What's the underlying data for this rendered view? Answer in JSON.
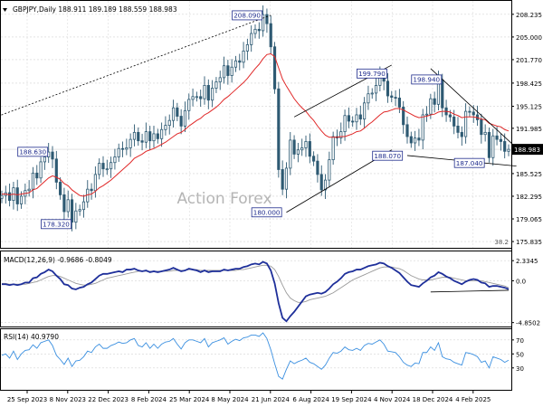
{
  "symbol_line": "GBPJPY,Daily  188.911 189.189 188.559 188.983",
  "watermark": "Action Forex",
  "colors": {
    "candle": "#2e5a73",
    "ma": "#e02828",
    "trendline": "#000000",
    "label_border": "#1e2b8c",
    "label_text": "#1e2b8c",
    "macd": "#1e2f9a",
    "signal": "#9a9a9a",
    "rsi": "#3a8fe0",
    "grid": "#d4d4d4",
    "price_box": "#000000",
    "watermark": "#b4b4b4"
  },
  "chart_data": [
    {
      "type": "candlestick",
      "title": "GBPJPY,Daily",
      "ohlc_last": {
        "open": 188.911,
        "high": 189.189,
        "low": 188.559,
        "close": 188.983
      },
      "current_price_label": "188.983",
      "y_ticks": [
        "208.235",
        "205.000",
        "201.770",
        "198.425",
        "195.125",
        "191.985",
        "188.983",
        "185.525",
        "182.295",
        "179.065",
        "175.835"
      ],
      "y_tick_values": [
        208.235,
        205.0,
        201.77,
        198.425,
        195.125,
        191.985,
        188.983,
        185.525,
        182.295,
        179.065,
        175.835
      ],
      "ylim": [
        175.2,
        209.5
      ],
      "x_ticks": [
        "25 Sep 2023",
        "8 Nov 2023",
        "22 Dec 2023",
        "8 Feb 2024",
        "25 Mar 2024",
        "8 May 2024",
        "21 Jun 2024",
        "6 Aug 2024",
        "19 Sep 2024",
        "4 Nov 2024",
        "18 Dec 2024",
        "4 Feb 2025"
      ],
      "x_tick_positions": [
        0.05,
        0.13,
        0.21,
        0.29,
        0.37,
        0.45,
        0.53,
        0.61,
        0.69,
        0.77,
        0.85,
        0.93
      ],
      "fib_label": "38.2",
      "closes": [
        182.4,
        182.8,
        181.7,
        183.5,
        181.2,
        182.3,
        183.1,
        183.3,
        185.6,
        184.9,
        187.2,
        187.9,
        188.6,
        187.6,
        184.3,
        182.5,
        180.1,
        181.8,
        178.6,
        180.2,
        180.4,
        181.5,
        183.3,
        183.1,
        185.4,
        187.0,
        186.2,
        186.2,
        187.1,
        187.9,
        189.1,
        189.0,
        189.2,
        190.4,
        191.4,
        190.2,
        190.0,
        191.5,
        190.2,
        191.2,
        190.5,
        191.8,
        192.4,
        193.1,
        194.9,
        193.7,
        192.3,
        194.5,
        196.1,
        196.5,
        196.5,
        196.2,
        198.1,
        196.0,
        197.7,
        198.6,
        199.2,
        200.9,
        199.5,
        200.7,
        201.6,
        201.4,
        203.0,
        203.9,
        205.5,
        206.1,
        205.9,
        208.2,
        206.9,
        203.6,
        197.6,
        186.1,
        183.3,
        186.3,
        190.3,
        188.3,
        188.9,
        189.2,
        190.1,
        188.0,
        187.3,
        185.4,
        183.2,
        184.6,
        187.5,
        190.8,
        190.6,
        191.5,
        193.8,
        193.0,
        192.9,
        193.9,
        193.3,
        195.6,
        196.9,
        197.0,
        198.1,
        199.5,
        198.7,
        196.6,
        196.4,
        196.3,
        195.0,
        192.5,
        190.8,
        189.9,
        190.6,
        190.3,
        193.9,
        194.0,
        196.2,
        195.4,
        198.9,
        194.9,
        193.9,
        193.6,
        192.3,
        191.4,
        190.8,
        194.4,
        194.3,
        193.9,
        193.2,
        191.1,
        191.4,
        187.8,
        190.9,
        190.4,
        190.1,
        188.7,
        188.983
      ],
      "ma_values": [
        182.6,
        182.6,
        182.5,
        182.6,
        182.5,
        182.6,
        182.7,
        182.8,
        183.2,
        183.4,
        183.9,
        184.4,
        184.9,
        185.2,
        185.0,
        184.7,
        184.1,
        183.8,
        183.2,
        182.8,
        182.4,
        182.3,
        182.5,
        182.6,
        183.0,
        183.5,
        183.8,
        184.2,
        184.6,
        185.1,
        185.6,
        186.1,
        186.6,
        187.1,
        187.7,
        188.0,
        188.3,
        188.7,
        188.9,
        189.1,
        189.4,
        189.7,
        190.0,
        190.4,
        190.8,
        191.2,
        191.4,
        191.8,
        192.3,
        192.7,
        193.1,
        193.4,
        193.9,
        194.2,
        194.6,
        195.0,
        195.5,
        196.1,
        196.5,
        197.0,
        197.5,
        198.0,
        198.5,
        199.1,
        199.8,
        200.5,
        201.1,
        201.9,
        202.5,
        202.6,
        202.2,
        200.6,
        199.0,
        198.0,
        197.1,
        196.2,
        195.5,
        194.9,
        194.4,
        193.7,
        193.1,
        192.3,
        191.6,
        191.0,
        190.7,
        190.7,
        190.7,
        190.8,
        190.8,
        191.0,
        191.2,
        191.5,
        191.6,
        192.0,
        192.5,
        192.9,
        193.4,
        193.9,
        194.3,
        194.4,
        194.6,
        194.8,
        194.8,
        194.6,
        194.3,
        194.0,
        193.7,
        193.5,
        193.6,
        193.7,
        193.9,
        194.0,
        194.3,
        194.4,
        194.4,
        194.3,
        194.0,
        193.8,
        193.5,
        193.6,
        193.6,
        193.6,
        193.5,
        193.3,
        193.2,
        192.7,
        192.5,
        192.3,
        192.2,
        191.8,
        191.6
      ],
      "annotations": [
        {
          "text": "208.090",
          "x": 67,
          "y": 208.09
        },
        {
          "text": "188.630",
          "x": 12,
          "y": 188.63
        },
        {
          "text": "178.320",
          "x": 18,
          "y": 178.32
        },
        {
          "text": "180.000",
          "x": 72,
          "y": 180.0
        },
        {
          "text": "199.790",
          "x": 99,
          "y": 199.79
        },
        {
          "text": "198.940",
          "x": 113,
          "y": 198.94
        },
        {
          "text": "188.070",
          "x": 103,
          "y": 188.07
        },
        {
          "text": "187.040",
          "x": 124,
          "y": 187.04
        }
      ],
      "trendlines": [
        {
          "style": "dashed",
          "from": [
            -1,
            193.7
          ],
          "to": [
            69,
            208.1
          ]
        },
        {
          "style": "solid",
          "from": [
            73,
            180.0
          ],
          "to": [
            100,
            188.9
          ]
        },
        {
          "style": "solid",
          "from": [
            75,
            193.6
          ],
          "to": [
            100,
            201.0
          ]
        },
        {
          "style": "solid",
          "from": [
            104,
            188.1
          ],
          "to": [
            132,
            186.6
          ]
        },
        {
          "style": "solid",
          "from": [
            110,
            200.5
          ],
          "to": [
            132,
            189.2
          ]
        }
      ]
    },
    {
      "type": "line",
      "title": "MACD(12,26,9) -0.9686 -0.8049",
      "y_ticks": [
        "2.3345",
        "0.0",
        "-4.8502"
      ],
      "y_tick_values": [
        2.3345,
        0.0,
        -4.8502
      ],
      "ylim": [
        -5.2,
        3.3
      ],
      "series": [
        {
          "name": "MACD",
          "values": [
            -0.4,
            -0.4,
            -0.5,
            -0.4,
            -0.5,
            -0.4,
            -0.2,
            -0.2,
            0.3,
            0.4,
            0.8,
            1.0,
            1.3,
            1.1,
            0.6,
            0.2,
            -0.4,
            -0.5,
            -0.9,
            -1.0,
            -0.8,
            -0.7,
            -0.4,
            -0.2,
            0.2,
            0.6,
            0.8,
            0.8,
            0.9,
            1.0,
            1.1,
            1.0,
            1.3,
            1.3,
            1.4,
            1.2,
            1.1,
            1.2,
            1.0,
            1.1,
            1.0,
            1.1,
            1.2,
            1.3,
            1.5,
            1.3,
            1.1,
            1.2,
            1.4,
            1.3,
            1.2,
            1.0,
            1.2,
            1.0,
            1.1,
            1.1,
            1.1,
            1.3,
            1.2,
            1.3,
            1.4,
            1.4,
            1.6,
            1.7,
            1.9,
            2.0,
            1.9,
            2.2,
            2.0,
            1.2,
            -0.3,
            -2.6,
            -4.3,
            -4.7,
            -4.1,
            -3.6,
            -3.0,
            -2.4,
            -1.8,
            -1.6,
            -1.5,
            -1.4,
            -1.5,
            -1.3,
            -0.9,
            -0.4,
            -0.1,
            0.3,
            0.8,
            1.0,
            1.1,
            1.3,
            1.3,
            1.5,
            1.7,
            1.8,
            1.9,
            2.1,
            2.0,
            1.7,
            1.5,
            1.2,
            0.9,
            0.4,
            -0.1,
            -0.5,
            -0.6,
            -0.7,
            -0.3,
            0.0,
            0.4,
            0.6,
            1.0,
            0.8,
            0.5,
            0.3,
            0.0,
            -0.2,
            -0.4,
            -0.1,
            0.1,
            0.2,
            0.1,
            -0.2,
            -0.3,
            -0.7,
            -0.6,
            -0.6,
            -0.7,
            -0.8,
            -0.9686
          ]
        },
        {
          "name": "Signal",
          "values": [
            -0.3,
            -0.3,
            -0.4,
            -0.4,
            -0.4,
            -0.4,
            -0.4,
            -0.3,
            -0.2,
            -0.1,
            0.1,
            0.3,
            0.5,
            0.6,
            0.6,
            0.5,
            0.3,
            0.1,
            -0.1,
            -0.3,
            -0.4,
            -0.5,
            -0.5,
            -0.4,
            -0.3,
            -0.1,
            0.1,
            0.3,
            0.4,
            0.5,
            0.6,
            0.7,
            0.8,
            0.9,
            1.0,
            1.1,
            1.1,
            1.1,
            1.1,
            1.1,
            1.1,
            1.1,
            1.1,
            1.1,
            1.2,
            1.2,
            1.2,
            1.2,
            1.3,
            1.3,
            1.3,
            1.2,
            1.2,
            1.2,
            1.2,
            1.2,
            1.2,
            1.2,
            1.2,
            1.2,
            1.2,
            1.3,
            1.3,
            1.4,
            1.5,
            1.6,
            1.7,
            1.8,
            1.8,
            1.7,
            1.3,
            0.5,
            -0.5,
            -1.4,
            -2.0,
            -2.3,
            -2.5,
            -2.5,
            -2.4,
            -2.2,
            -2.1,
            -2.0,
            -1.9,
            -1.8,
            -1.6,
            -1.4,
            -1.1,
            -0.8,
            -0.5,
            -0.2,
            0.1,
            0.3,
            0.5,
            0.7,
            0.9,
            1.1,
            1.3,
            1.5,
            1.6,
            1.6,
            1.6,
            1.5,
            1.4,
            1.2,
            0.9,
            0.6,
            0.4,
            0.2,
            0.1,
            0.1,
            0.1,
            0.2,
            0.3,
            0.4,
            0.4,
            0.4,
            0.3,
            0.2,
            0.1,
            0.0,
            0.0,
            0.0,
            0.0,
            0.0,
            -0.1,
            -0.2,
            -0.3,
            -0.4,
            -0.5,
            -0.6,
            -0.8049
          ]
        }
      ]
    },
    {
      "type": "line",
      "title": "RSI(14) 40.9790",
      "y_ticks": [
        "70",
        "50",
        "30"
      ],
      "y_tick_values": [
        70,
        50,
        30
      ],
      "ylim": [
        0,
        84
      ],
      "series": [
        {
          "name": "RSI",
          "values": [
            48,
            50,
            44,
            54,
            42,
            50,
            55,
            56,
            63,
            58,
            66,
            68,
            70,
            62,
            48,
            42,
            35,
            44,
            32,
            40,
            41,
            46,
            54,
            52,
            60,
            64,
            58,
            58,
            62,
            64,
            67,
            65,
            66,
            70,
            72,
            62,
            60,
            66,
            58,
            64,
            58,
            64,
            67,
            68,
            72,
            64,
            57,
            66,
            70,
            70,
            68,
            66,
            72,
            60,
            66,
            68,
            70,
            73,
            64,
            68,
            71,
            69,
            73,
            74,
            77,
            77,
            75,
            80,
            72,
            56,
            36,
            18,
            14,
            28,
            40,
            36,
            39,
            41,
            44,
            38,
            36,
            32,
            28,
            34,
            44,
            52,
            51,
            54,
            60,
            56,
            55,
            58,
            55,
            62,
            65,
            64,
            67,
            70,
            64,
            54,
            53,
            52,
            46,
            38,
            34,
            32,
            37,
            36,
            52,
            52,
            60,
            55,
            66,
            46,
            43,
            42,
            38,
            36,
            34,
            52,
            51,
            49,
            46,
            38,
            40,
            30,
            46,
            44,
            42,
            38,
            41
          ]
        }
      ]
    }
  ]
}
